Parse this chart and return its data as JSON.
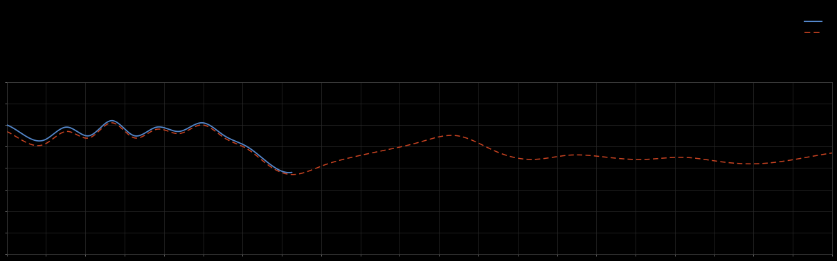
{
  "background_color": "#000000",
  "plot_bg_color": "#000000",
  "grid_color": "#2a2a2a",
  "text_color": "#888888",
  "line1_color": "#5588cc",
  "line2_color": "#cc4422",
  "line1_label": "",
  "line2_label": "",
  "figsize": [
    12.09,
    3.78
  ],
  "dpi": 100,
  "xlim": [
    0,
    110
  ],
  "ylim": [
    -3,
    5
  ],
  "ytick_count": 9,
  "xtick_count": 22,
  "blue_x": [
    0,
    2,
    5,
    8,
    11,
    14,
    17,
    20,
    23,
    26,
    29,
    32,
    35,
    38
  ],
  "blue_y": [
    3.0,
    2.6,
    2.3,
    2.9,
    2.5,
    3.2,
    2.5,
    2.9,
    2.7,
    3.1,
    2.5,
    2.0,
    1.2,
    0.8
  ],
  "red_x": [
    0,
    2,
    5,
    8,
    11,
    14,
    17,
    20,
    23,
    26,
    29,
    32,
    35,
    38,
    42,
    46,
    50,
    55,
    60,
    65,
    70,
    75,
    80,
    85,
    90,
    95,
    100,
    105,
    110
  ],
  "red_y": [
    2.7,
    2.3,
    2.1,
    2.7,
    2.4,
    3.1,
    2.4,
    2.8,
    2.6,
    3.0,
    2.4,
    1.9,
    1.1,
    0.7,
    1.1,
    1.5,
    1.8,
    2.2,
    2.5,
    1.8,
    1.4,
    1.6,
    1.5,
    1.4,
    1.5,
    1.3,
    1.2,
    1.4,
    1.7
  ]
}
